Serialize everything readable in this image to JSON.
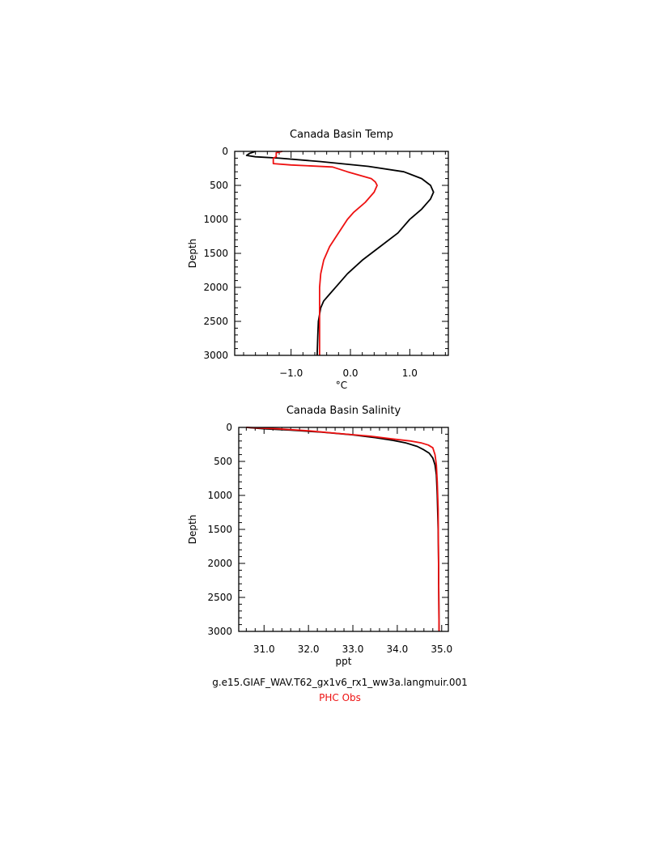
{
  "colors": {
    "model": "#000000",
    "obs": "#ee1111"
  },
  "legend": {
    "model_label": "g.e15.GIAF_WAV.T62_gx1v6_rx1_ww3a.langmuir.001",
    "obs_label": "PHC Obs"
  },
  "chart_data": [
    {
      "type": "line",
      "title": "Canada Basin Temp",
      "xlabel": "°C",
      "ylabel": "Depth",
      "xlim": [
        -1.95,
        1.65
      ],
      "ylim": [
        3000,
        0
      ],
      "y_inverted": true,
      "xticks": [
        -1.0,
        0.0,
        1.0
      ],
      "xtick_labels": [
        "−1.0",
        "0.0",
        "1.0"
      ],
      "yticks": [
        0,
        500,
        1000,
        1500,
        2000,
        2500,
        3000
      ],
      "ytick_labels": [
        "0",
        "500",
        "1000",
        "1500",
        "2000",
        "2500",
        "3000"
      ],
      "grid": false,
      "series": [
        {
          "name": "g.e15.GIAF_WAV.T62_gx1v6_rx1_ww3a.langmuir.001",
          "color_key": "model",
          "x": [
            -1.6,
            -1.7,
            -1.75,
            -1.6,
            -1.2,
            -0.5,
            0.3,
            0.9,
            1.2,
            1.35,
            1.4,
            1.35,
            1.2,
            1.0,
            0.8,
            0.5,
            0.2,
            -0.05,
            -0.2,
            -0.35,
            -0.45,
            -0.5,
            -0.54,
            -0.55,
            -0.56
          ],
          "y": [
            0,
            30,
            60,
            80,
            100,
            150,
            220,
            300,
            400,
            500,
            600,
            700,
            850,
            1000,
            1200,
            1400,
            1600,
            1800,
            1950,
            2100,
            2200,
            2300,
            2500,
            2700,
            3000
          ]
        },
        {
          "name": "PHC Obs",
          "color_key": "obs",
          "x": [
            -1.15,
            -1.25,
            -1.25,
            -1.25,
            -1.25,
            -1.3,
            -1.3,
            -1.0,
            -0.3,
            -0.05,
            0.35,
            0.42,
            0.45,
            0.4,
            0.25,
            0.05,
            -0.05,
            -0.2,
            -0.35,
            -0.45,
            -0.5,
            -0.52,
            -0.52,
            -0.52
          ],
          "y": [
            0,
            20,
            40,
            60,
            80,
            100,
            180,
            200,
            230,
            300,
            400,
            450,
            500,
            600,
            750,
            900,
            1000,
            1200,
            1400,
            1600,
            1800,
            2000,
            2500,
            3000
          ]
        }
      ]
    },
    {
      "type": "line",
      "title": "Canada Basin Salinity",
      "xlabel": "ppt",
      "ylabel": "Depth",
      "xlim": [
        30.43,
        35.15
      ],
      "ylim": [
        3000,
        0
      ],
      "y_inverted": true,
      "xticks": [
        31.0,
        32.0,
        33.0,
        34.0,
        35.0
      ],
      "xtick_labels": [
        "31.0",
        "32.0",
        "33.0",
        "34.0",
        "35.0"
      ],
      "yticks": [
        0,
        500,
        1000,
        1500,
        2000,
        2500,
        3000
      ],
      "ytick_labels": [
        "0",
        "500",
        "1000",
        "1500",
        "2000",
        "2500",
        "3000"
      ],
      "grid": false,
      "series": [
        {
          "name": "g.e15.GIAF_WAV.T62_gx1v6_rx1_ww3a.langmuir.001",
          "color_key": "model",
          "x": [
            30.6,
            31.0,
            31.6,
            32.3,
            33.0,
            33.5,
            33.9,
            34.2,
            34.45,
            34.6,
            34.72,
            34.8,
            34.85,
            34.88,
            34.9,
            34.92,
            34.93,
            34.94
          ],
          "y": [
            0,
            20,
            40,
            70,
            110,
            150,
            190,
            230,
            280,
            330,
            380,
            450,
            550,
            700,
            1000,
            1500,
            2000,
            3000
          ]
        },
        {
          "name": "PHC Obs",
          "color_key": "obs",
          "x": [
            30.6,
            31.3,
            32.0,
            32.7,
            33.4,
            33.9,
            34.3,
            34.55,
            34.7,
            34.8,
            34.85,
            34.88,
            34.9,
            34.92,
            34.93,
            34.94
          ],
          "y": [
            0,
            20,
            50,
            90,
            130,
            170,
            200,
            230,
            260,
            300,
            400,
            550,
            800,
            1200,
            2000,
            3000
          ]
        }
      ]
    }
  ]
}
